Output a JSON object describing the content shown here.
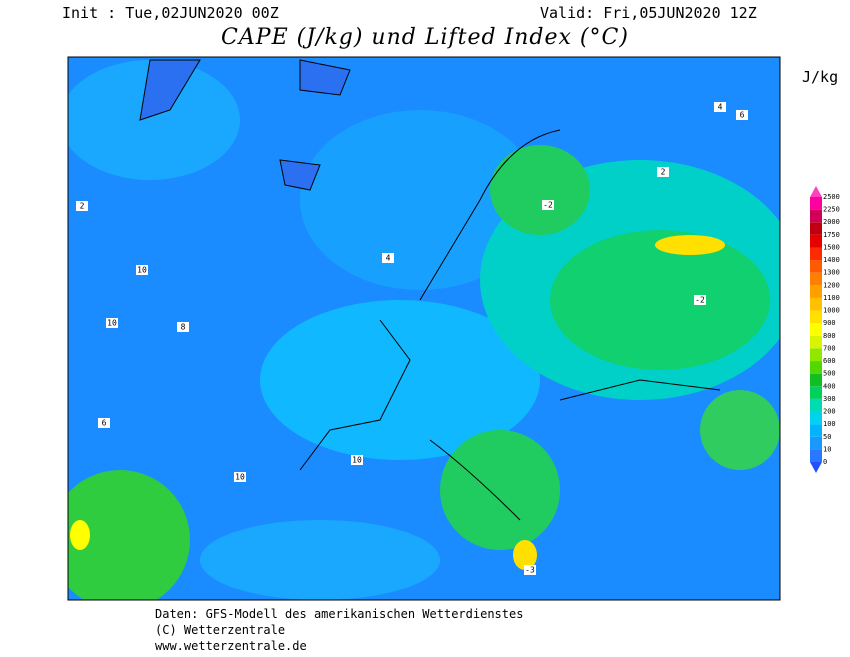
{
  "header": {
    "init": "Init : Tue,02JUN2020 00Z",
    "valid": "Valid: Fri,05JUN2020 12Z",
    "title": "CAPE (J/kg) und Lifted Index (°C)"
  },
  "legend": {
    "unit": "J/kg",
    "levels": [
      0,
      10,
      50,
      100,
      200,
      300,
      400,
      500,
      600,
      700,
      800,
      900,
      1000,
      1100,
      1200,
      1300,
      1400,
      1500,
      1750,
      2000,
      2250,
      2500
    ],
    "colors": [
      "#2a78ff",
      "#1a98ff",
      "#00b4ff",
      "#00d2f0",
      "#00dcb0",
      "#00d060",
      "#10c020",
      "#50d800",
      "#90e800",
      "#d8f400",
      "#ffff00",
      "#ffe000",
      "#ffc000",
      "#ffa000",
      "#ff8000",
      "#ff5a00",
      "#ff2a00",
      "#e80000",
      "#c00010",
      "#d0005a",
      "#ff00a0"
    ]
  },
  "map": {
    "labels": [
      10,
      10,
      10,
      10,
      -3,
      8,
      6,
      4,
      2,
      -2,
      4,
      6,
      2,
      -2
    ]
  },
  "footer": {
    "lines": [
      "Daten: GFS-Modell des amerikanischen Wetterdienstes",
      "(C) Wetterzentrale",
      "www.wetterzentrale.de"
    ]
  }
}
